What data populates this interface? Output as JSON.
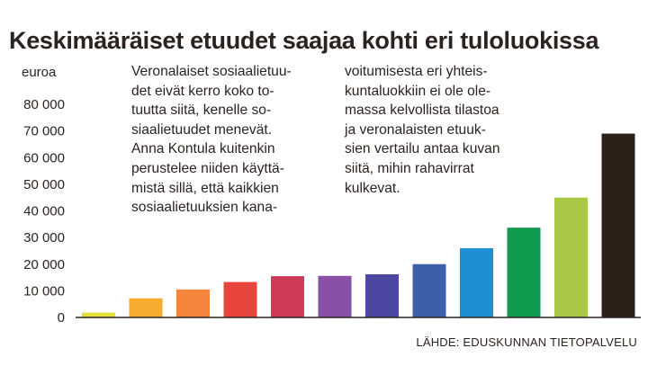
{
  "title": "Keskimääräiset etuudet saajaa kohti eri tuloluokissa",
  "unit_label": "euroa",
  "text_column_1": "Veronalaiset sosiaalietuu-\ndet eivät kerro koko to-\ntuutta siitä, kenelle so-\nsiaalietuudet menevät.\nAnna Kontula kuitenkin\nperustelee niiden käyttä-\nmistä sillä, että kaikkien\nsosiaalietuuksien kana-",
  "text_column_2": "voitumisesta eri yhteis-\nkuntaluokkiin ei ole ole-\nmassa kelvollista tilastoa\nja veronalaisten etuuk-\nsien vertailu antaa kuvan\nsiitä, mihin rahavirrat\nkulkevat.",
  "source": "LÄHDE: EDUSKUNNAN TIETOPALVELU",
  "chart_data": {
    "type": "bar",
    "title": "Keskimääräiset etuudet saajaa kohti eri tuloluokissa",
    "ylabel": "euroa",
    "xlabel": "",
    "ylim": [
      0,
      80000
    ],
    "yticks": [
      0,
      10000,
      20000,
      30000,
      40000,
      50000,
      60000,
      70000,
      80000
    ],
    "ytick_labels": [
      "0",
      "10 000",
      "20 000",
      "30 000",
      "40 000",
      "50 000",
      "60 000",
      "70 000",
      "80 000"
    ],
    "grid": false,
    "values": [
      1800,
      7200,
      10500,
      13300,
      15500,
      15600,
      16200,
      20000,
      26000,
      33700,
      45000,
      69000
    ],
    "colors": [
      "#e3e03a",
      "#f6ac2e",
      "#f5843c",
      "#e8453c",
      "#cf3a57",
      "#8a4fa6",
      "#4c47a0",
      "#3d5ea8",
      "#1f8fd3",
      "#109a50",
      "#a8c846",
      "#2c2018"
    ]
  }
}
